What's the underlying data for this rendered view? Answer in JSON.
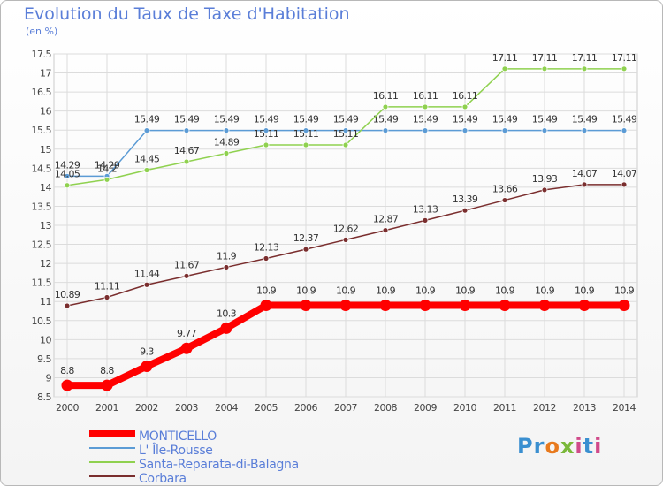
{
  "title": "Evolution du Taux de Taxe d'Habitation",
  "unit_label": "(en %)",
  "logo_text": "Proxiti",
  "chart_data": {
    "type": "line",
    "title": "Evolution du Taux de Taxe d'Habitation",
    "ylabel": "(en %)",
    "xlabel": "",
    "x": [
      "2000",
      "2001",
      "2002",
      "2003",
      "2004",
      "2005",
      "2006",
      "2007",
      "2008",
      "2009",
      "2010",
      "2011",
      "2012",
      "2013",
      "2014"
    ],
    "ylim": [
      8.5,
      17.5
    ],
    "yticks": [
      "8.5",
      "9",
      "9.5",
      "10",
      "10.5",
      "11",
      "11.5",
      "12",
      "12.5",
      "13",
      "13.5",
      "14",
      "14.5",
      "15",
      "15.5",
      "16",
      "16.5",
      "17",
      "17.5"
    ],
    "grid": true,
    "legend_position": "bottom-left",
    "series": [
      {
        "name": "MONTICELLO",
        "color": "#ff0000",
        "values": [
          8.8,
          8.8,
          9.3,
          9.77,
          10.3,
          10.9,
          10.9,
          10.9,
          10.9,
          10.9,
          10.9,
          10.9,
          10.9,
          10.9,
          10.9
        ],
        "labels": [
          "8.8",
          "8.8",
          "9.3",
          "9.77",
          "10.3",
          "10.9",
          "10.9",
          "10.9",
          "10.9",
          "10.9",
          "10.9",
          "10.9",
          "10.9",
          "10.9",
          "10.9"
        ]
      },
      {
        "name": "L' Île-Rousse",
        "color": "#5b9bd5",
        "values": [
          14.29,
          14.29,
          15.49,
          15.49,
          15.49,
          15.49,
          15.49,
          15.49,
          15.49,
          15.49,
          15.49,
          15.49,
          15.49,
          15.49,
          15.49
        ],
        "labels": [
          "14.29",
          "14.29",
          "15.49",
          "15.49",
          "15.49",
          "15.49",
          "15.49",
          "15.49",
          "15.49",
          "15.49",
          "15.49",
          "15.49",
          "15.49",
          "15.49",
          "15.49"
        ]
      },
      {
        "name": "Santa-Reparata-di-Balagna",
        "color": "#8fd14f",
        "values": [
          14.05,
          14.2,
          14.45,
          14.67,
          14.89,
          15.11,
          15.11,
          15.11,
          16.11,
          16.11,
          16.11,
          17.11,
          17.11,
          17.11,
          17.11
        ],
        "labels": [
          "14.05",
          "14.2",
          "14.45",
          "14.67",
          "14.89",
          "15.11",
          "15.11",
          "15.11",
          "16.11",
          "16.11",
          "16.11",
          "17.11",
          "17.11",
          "17.11",
          "17.11"
        ]
      },
      {
        "name": "Corbara",
        "color": "#7a2e2e",
        "values": [
          10.89,
          11.11,
          11.44,
          11.67,
          11.9,
          12.13,
          12.37,
          12.62,
          12.87,
          13.13,
          13.39,
          13.66,
          13.93,
          14.07,
          14.07
        ],
        "labels": [
          "10.89",
          "11.11",
          "11.44",
          "11.67",
          "11.9",
          "12.13",
          "12.37",
          "12.62",
          "12.87",
          "13.13",
          "13.39",
          "13.66",
          "13.93",
          "14.07",
          "14.07"
        ]
      }
    ]
  }
}
